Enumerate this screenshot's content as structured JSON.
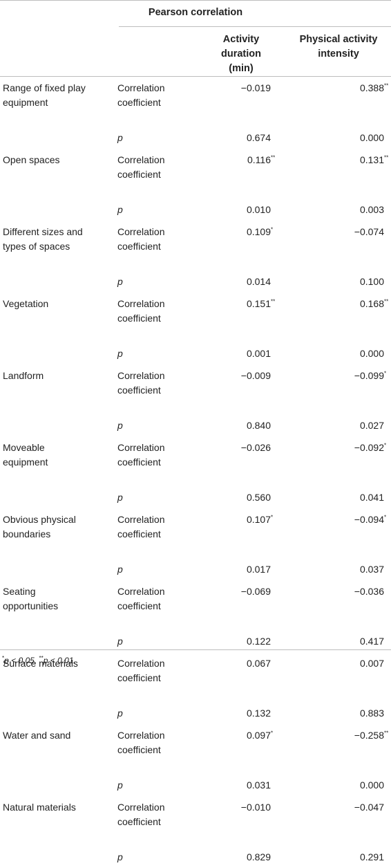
{
  "table": {
    "title": "Pearson correlation",
    "col_activity_duration": "Activity duration\n(min)",
    "col_physical_intensity": "Physical activity\nintensity",
    "stat_corr": "Correlation\ncoefficient",
    "stat_p": "p",
    "rows": [
      {
        "factor": "Range of fixed play\nequipment",
        "corr_dur": "−0.019",
        "corr_dur_sig": "",
        "corr_int": "0.388",
        "corr_int_sig": "**",
        "p_dur": "0.674",
        "p_int": "0.000"
      },
      {
        "factor": "Open spaces",
        "corr_dur": "0.116",
        "corr_dur_sig": "**",
        "corr_int": "0.131",
        "corr_int_sig": "**",
        "p_dur": "0.010",
        "p_int": "0.003"
      },
      {
        "factor": "Different sizes and\ntypes of spaces",
        "corr_dur": "0.109",
        "corr_dur_sig": "*",
        "corr_int": "−0.074",
        "corr_int_sig": "",
        "p_dur": "0.014",
        "p_int": "0.100"
      },
      {
        "factor": "Vegetation",
        "corr_dur": "0.151",
        "corr_dur_sig": "**",
        "corr_int": "0.168",
        "corr_int_sig": "**",
        "p_dur": "0.001",
        "p_int": "0.000"
      },
      {
        "factor": "Landform",
        "corr_dur": "−0.009",
        "corr_dur_sig": "",
        "corr_int": "−0.099",
        "corr_int_sig": "*",
        "p_dur": "0.840",
        "p_int": "0.027"
      },
      {
        "factor": "Moveable\nequipment",
        "corr_dur": "−0.026",
        "corr_dur_sig": "",
        "corr_int": "−0.092",
        "corr_int_sig": "*",
        "p_dur": "0.560",
        "p_int": "0.041"
      },
      {
        "factor": "Obvious physical\nboundaries",
        "corr_dur": "0.107",
        "corr_dur_sig": "*",
        "corr_int": "−0.094",
        "corr_int_sig": "*",
        "p_dur": "0.017",
        "p_int": "0.037"
      },
      {
        "factor": "Seating\nopportunities",
        "corr_dur": "−0.069",
        "corr_dur_sig": "",
        "corr_int": "−0.036",
        "corr_int_sig": "",
        "p_dur": "0.122",
        "p_int": "0.417"
      },
      {
        "factor": "Surface materials",
        "corr_dur": "0.067",
        "corr_dur_sig": "",
        "corr_int": "0.007",
        "corr_int_sig": "",
        "p_dur": "0.132",
        "p_int": "0.883"
      },
      {
        "factor": "Water and sand",
        "corr_dur": "0.097",
        "corr_dur_sig": "*",
        "corr_int": "−0.258",
        "corr_int_sig": "**",
        "p_dur": "0.031",
        "p_int": "0.000"
      },
      {
        "factor": "Natural materials",
        "corr_dur": "−0.010",
        "corr_dur_sig": "",
        "corr_int": "−0.047",
        "corr_int_sig": "",
        "p_dur": "0.829",
        "p_int": "0.291"
      }
    ]
  },
  "footnote": {
    "sig1_mark": "*",
    "sig1_text": "p < 0.05, ",
    "sig2_mark": "**",
    "sig2_text": "p < 0.01."
  }
}
